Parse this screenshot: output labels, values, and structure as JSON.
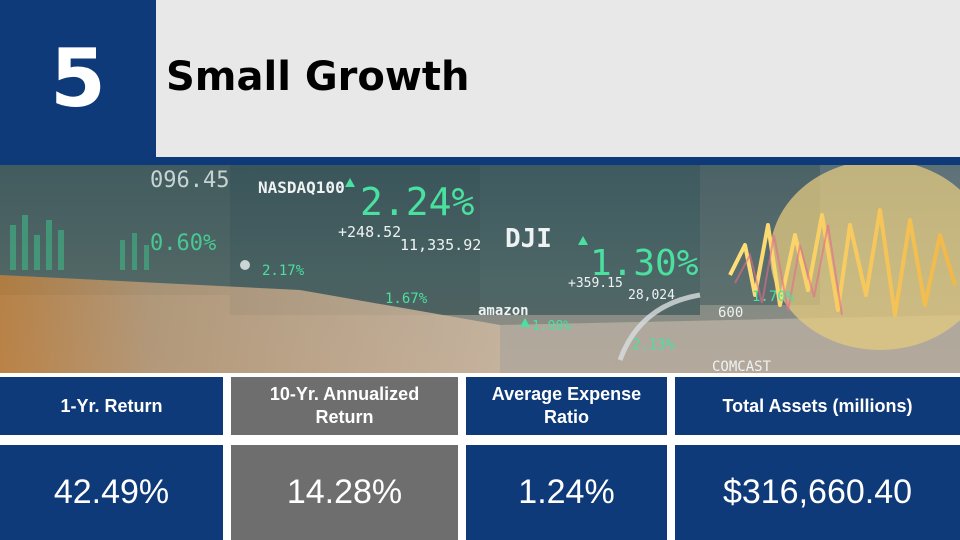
{
  "rank": "5",
  "title": "Small Growth",
  "banner": {
    "description_icon": "stock-ticker-photo",
    "tickers": {
      "top_left": "096.45",
      "nasdaq_label": "NASDAQ100",
      "nasdaq_change_pct": "2.24%",
      "nasdaq_change": "+248.52",
      "nasdaq_value": "11,335.92",
      "left_pct": "0.60%",
      "apple_pct": "2.17%",
      "mid_pct": "1.67%",
      "amazon_label": "amazon",
      "amazon_pct": "1.98%",
      "dji_label": "DJI",
      "dji_change_pct": "1.30%",
      "dji_change": "+359.15",
      "dji_value": "28,024",
      "paypal_pct": "2.13%",
      "right_pct": "1.70%",
      "right_num": "600",
      "comcast_label": "COMCAST"
    }
  },
  "stats": {
    "headers": {
      "one_year": "1-Yr. Return",
      "ten_year": "10-Yr. Annualized Return",
      "expense": "Average Expense Ratio",
      "assets": "Total Assets (millions)"
    },
    "values": {
      "one_year": "42.49%",
      "ten_year": "14.28%",
      "expense": "1.24%",
      "assets": "$316,660.40"
    }
  },
  "colors": {
    "navy": "#0f3a7a",
    "gray": "#6e6e6e",
    "title_bg": "#e8e8e8",
    "ticker_green": "#49e0a0"
  }
}
